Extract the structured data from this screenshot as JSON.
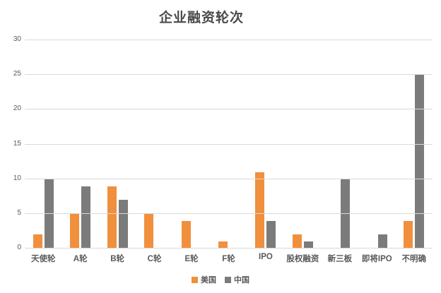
{
  "chart_data": {
    "type": "bar",
    "title": "企业融资轮次",
    "categories": [
      "天使轮",
      "A轮",
      "B轮",
      "C轮",
      "E轮",
      "F轮",
      "IPO",
      "股权融资",
      "新三板",
      "即将IPO",
      "不明确"
    ],
    "series": [
      {
        "name": "美国",
        "color": "#F0903C",
        "values": [
          2,
          5,
          9,
          5,
          4,
          1,
          11,
          2,
          0,
          0,
          4
        ]
      },
      {
        "name": "中国",
        "color": "#7B7B7B",
        "values": [
          10,
          9,
          7,
          0,
          0,
          0,
          4,
          1,
          10,
          2,
          25
        ]
      }
    ],
    "xlabel": "",
    "ylabel": "",
    "ylim": [
      0,
      30
    ],
    "yticks": [
      0,
      5,
      10,
      15,
      20,
      25,
      30
    ],
    "grid": true,
    "legend_position": "bottom",
    "colors": {
      "gridline": "#D9D9D9",
      "axis_text": "#595959",
      "title_text": "#4A4A4A",
      "background": "#FFFFFF"
    }
  }
}
